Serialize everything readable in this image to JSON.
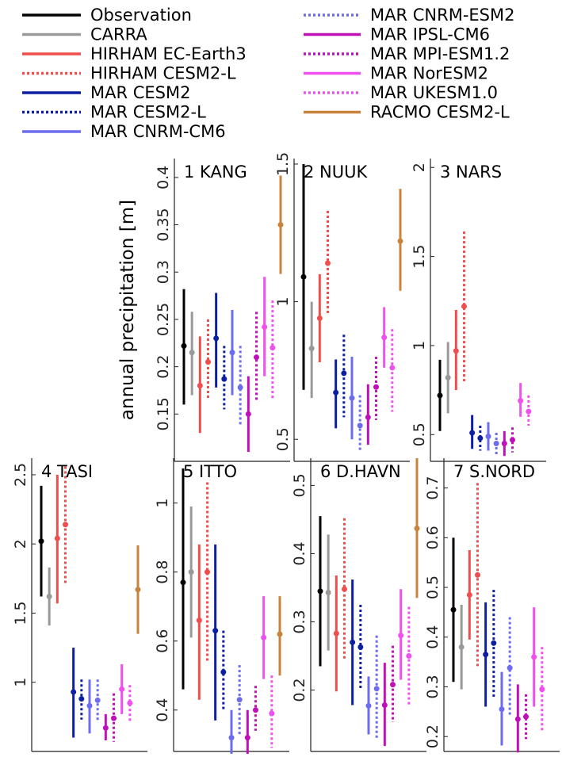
{
  "colors": {
    "Observation": "#000000",
    "CARRA": "#999999",
    "HIRHAM EC-Earth3": "#f04e4e",
    "HIRHAM CESM2-L": "#f04e4e",
    "MAR CESM2": "#0b1fa0",
    "MAR CESM2-L": "#0b1fa0",
    "MAR CNRM-CM6": "#6c6cee",
    "MAR CNRM-ESM2": "#6c6cee",
    "MAR IPSL-CM6": "#c010b8",
    "MAR MPI-ESM1.2": "#c010b8",
    "MAR NorESM2": "#f050ee",
    "MAR UKESM1.0": "#f050ee",
    "RACMO CESM2-L": "#c8843c"
  },
  "legend": [
    {
      "name": "Observation",
      "dashed": false
    },
    {
      "name": "CARRA",
      "dashed": false
    },
    {
      "name": "HIRHAM EC-Earth3",
      "dashed": false
    },
    {
      "name": "HIRHAM CESM2-L",
      "dashed": true
    },
    {
      "name": "MAR CESM2",
      "dashed": false
    },
    {
      "name": "MAR CESM2-L",
      "dashed": true
    },
    {
      "name": "MAR CNRM-CM6",
      "dashed": false
    },
    {
      "name": "MAR CNRM-ESM2",
      "dashed": true
    },
    {
      "name": "MAR IPSL-CM6",
      "dashed": false
    },
    {
      "name": "MAR MPI-ESM1.2",
      "dashed": true
    },
    {
      "name": "MAR NorESM2",
      "dashed": false
    },
    {
      "name": "MAR UKESM1.0",
      "dashed": true
    },
    {
      "name": "RACMO CESM2-L",
      "dashed": false
    }
  ],
  "chart_data": [
    {
      "type": "errorbar",
      "title": "1 KANG",
      "ylabel": "annual precipitation [m]",
      "ylim": [
        0.1,
        0.42
      ],
      "yticks": [
        "0.15",
        "0.2",
        "0.25",
        "0.3",
        "0.35",
        "0.4"
      ],
      "series": [
        {
          "name": "Observation",
          "mean": 0.222,
          "low": 0.16,
          "high": 0.282
        },
        {
          "name": "CARRA",
          "mean": 0.215,
          "low": 0.17,
          "high": 0.258
        },
        {
          "name": "HIRHAM EC-Earth3",
          "mean": 0.18,
          "low": 0.13,
          "high": 0.232
        },
        {
          "name": "HIRHAM CESM2-L",
          "mean": 0.205,
          "low": 0.165,
          "high": 0.25
        },
        {
          "name": "MAR CESM2",
          "mean": 0.23,
          "low": 0.178,
          "high": 0.278
        },
        {
          "name": "MAR CESM2-L",
          "mean": 0.187,
          "low": 0.155,
          "high": 0.222
        },
        {
          "name": "MAR CNRM-CM6",
          "mean": 0.215,
          "low": 0.17,
          "high": 0.26
        },
        {
          "name": "MAR CNRM-ESM2",
          "mean": 0.178,
          "low": 0.138,
          "high": 0.222
        },
        {
          "name": "MAR IPSL-CM6",
          "mean": 0.15,
          "low": 0.11,
          "high": 0.19
        },
        {
          "name": "MAR MPI-ESM1.2",
          "mean": 0.21,
          "low": 0.165,
          "high": 0.258
        },
        {
          "name": "MAR NorESM2",
          "mean": 0.242,
          "low": 0.19,
          "high": 0.295
        },
        {
          "name": "MAR UKESM1.0",
          "mean": 0.22,
          "low": 0.165,
          "high": 0.27
        },
        {
          "name": "RACMO CESM2-L",
          "mean": 0.35,
          "low": 0.298,
          "high": 0.402
        }
      ]
    },
    {
      "type": "errorbar",
      "title": "2 NUUK",
      "ylabel": "",
      "ylim": [
        0.42,
        1.52
      ],
      "yticks": [
        "0.5",
        "1",
        "1.5"
      ],
      "series": [
        {
          "name": "Observation",
          "mean": 1.09,
          "low": 0.68,
          "high": 1.5
        },
        {
          "name": "CARRA",
          "mean": 0.83,
          "low": 0.65,
          "high": 1.0
        },
        {
          "name": "HIRHAM EC-Earth3",
          "mean": 0.94,
          "low": 0.78,
          "high": 1.1
        },
        {
          "name": "HIRHAM CESM2-L",
          "mean": 1.14,
          "low": 0.95,
          "high": 1.33
        },
        {
          "name": "MAR CESM2",
          "mean": 0.67,
          "low": 0.54,
          "high": 0.79
        },
        {
          "name": "MAR CESM2-L",
          "mean": 0.74,
          "low": 0.58,
          "high": 0.88
        },
        {
          "name": "MAR CNRM-CM6",
          "mean": 0.65,
          "low": 0.5,
          "high": 0.8
        },
        {
          "name": "MAR CNRM-ESM2",
          "mean": 0.55,
          "low": 0.46,
          "high": 0.66
        },
        {
          "name": "MAR IPSL-CM6",
          "mean": 0.58,
          "low": 0.48,
          "high": 0.7
        },
        {
          "name": "MAR MPI-ESM1.2",
          "mean": 0.69,
          "low": 0.57,
          "high": 0.8
        },
        {
          "name": "MAR NorESM2",
          "mean": 0.87,
          "low": 0.76,
          "high": 0.98
        },
        {
          "name": "MAR UKESM1.0",
          "mean": 0.76,
          "low": 0.6,
          "high": 0.9
        },
        {
          "name": "RACMO CESM2-L",
          "mean": 1.22,
          "low": 1.04,
          "high": 1.41
        }
      ]
    },
    {
      "type": "errorbar",
      "title": "3 NARS",
      "ylabel": "",
      "ylim": [
        0.35,
        2.05
      ],
      "yticks": [
        "0.5",
        "1",
        "1.5",
        "2"
      ],
      "series": [
        {
          "name": "Observation",
          "mean": 0.72,
          "low": 0.52,
          "high": 0.92
        },
        {
          "name": "CARRA",
          "mean": 0.82,
          "low": 0.62,
          "high": 1.02
        },
        {
          "name": "HIRHAM EC-Earth3",
          "mean": 0.97,
          "low": 0.75,
          "high": 1.2
        },
        {
          "name": "HIRHAM CESM2-L",
          "mean": 1.22,
          "low": 0.8,
          "high": 1.64
        },
        {
          "name": "MAR CESM2",
          "mean": 0.51,
          "low": 0.42,
          "high": 0.61
        },
        {
          "name": "MAR CESM2-L",
          "mean": 0.48,
          "low": 0.41,
          "high": 0.55
        },
        {
          "name": "MAR CNRM-CM6",
          "mean": 0.49,
          "low": 0.41,
          "high": 0.57
        },
        {
          "name": "MAR CNRM-ESM2",
          "mean": 0.45,
          "low": 0.39,
          "high": 0.51
        },
        {
          "name": "MAR IPSL-CM6",
          "mean": 0.45,
          "low": 0.38,
          "high": 0.52
        },
        {
          "name": "MAR MPI-ESM1.2",
          "mean": 0.47,
          "low": 0.4,
          "high": 0.54
        },
        {
          "name": "MAR NorESM2",
          "mean": 0.69,
          "low": 0.6,
          "high": 0.79
        },
        {
          "name": "MAR UKESM1.0",
          "mean": 0.63,
          "low": 0.55,
          "high": 0.72
        },
        {
          "name": "RACMO CESM2-L",
          "mean": null,
          "low": null,
          "high": null
        }
      ]
    },
    {
      "type": "errorbar",
      "title": "4 TASI",
      "ylabel": "",
      "ylim": [
        0.5,
        2.62
      ],
      "yticks": [
        "1",
        "1.5",
        "2",
        "2.5"
      ],
      "series": [
        {
          "name": "Observation",
          "mean": 2.02,
          "low": 1.62,
          "high": 2.42
        },
        {
          "name": "CARRA",
          "mean": 1.62,
          "low": 1.41,
          "high": 1.83
        },
        {
          "name": "HIRHAM EC-Earth3",
          "mean": 2.04,
          "low": 1.57,
          "high": 2.5
        },
        {
          "name": "HIRHAM CESM2-L",
          "mean": 2.14,
          "low": 1.7,
          "high": 2.56
        },
        {
          "name": "MAR CESM2",
          "mean": 0.93,
          "low": 0.6,
          "high": 1.25
        },
        {
          "name": "MAR CESM2-L",
          "mean": 0.88,
          "low": 0.73,
          "high": 1.02
        },
        {
          "name": "MAR CNRM-CM6",
          "mean": 0.83,
          "low": 0.63,
          "high": 1.02
        },
        {
          "name": "MAR CNRM-ESM2",
          "mean": 0.87,
          "low": 0.72,
          "high": 1.02
        },
        {
          "name": "MAR IPSL-CM6",
          "mean": 0.67,
          "low": 0.58,
          "high": 0.77
        },
        {
          "name": "MAR MPI-ESM1.2",
          "mean": 0.74,
          "low": 0.57,
          "high": 0.92
        },
        {
          "name": "MAR NorESM2",
          "mean": 0.95,
          "low": 0.77,
          "high": 1.13
        },
        {
          "name": "MAR UKESM1.0",
          "mean": 0.85,
          "low": 0.72,
          "high": 0.98
        },
        {
          "name": "RACMO CESM2-L",
          "mean": 1.67,
          "low": 1.35,
          "high": 1.99
        }
      ]
    },
    {
      "type": "errorbar",
      "title": "5 ITTO",
      "ylabel": "",
      "ylim": [
        0.28,
        1.13
      ],
      "yticks": [
        "0.4",
        "0.6",
        "0.8",
        "1"
      ],
      "series": [
        {
          "name": "Observation",
          "mean": 0.77,
          "low": 0.46,
          "high": 1.1
        },
        {
          "name": "CARRA",
          "mean": 0.8,
          "low": 0.61,
          "high": 0.99
        },
        {
          "name": "HIRHAM EC-Earth3",
          "mean": 0.66,
          "low": 0.43,
          "high": 0.88
        },
        {
          "name": "HIRHAM CESM2-L",
          "mean": 0.8,
          "low": 0.54,
          "high": 1.06
        },
        {
          "name": "MAR CESM2",
          "mean": 0.63,
          "low": 0.37,
          "high": 0.88
        },
        {
          "name": "MAR CESM2-L",
          "mean": 0.51,
          "low": 0.4,
          "high": 0.63
        },
        {
          "name": "MAR CNRM-CM6",
          "mean": 0.32,
          "low": 0.24,
          "high": 0.4
        },
        {
          "name": "MAR CNRM-ESM2",
          "mean": 0.43,
          "low": 0.33,
          "high": 0.53
        },
        {
          "name": "MAR IPSL-CM6",
          "mean": 0.32,
          "low": 0.24,
          "high": 0.4
        },
        {
          "name": "MAR MPI-ESM1.2",
          "mean": 0.4,
          "low": 0.34,
          "high": 0.47
        },
        {
          "name": "MAR NorESM2",
          "mean": 0.61,
          "low": 0.49,
          "high": 0.73
        },
        {
          "name": "MAR UKESM1.0",
          "mean": 0.39,
          "low": 0.29,
          "high": 0.5
        },
        {
          "name": "RACMO CESM2-L",
          "mean": 0.62,
          "low": 0.5,
          "high": 0.73
        }
      ]
    },
    {
      "type": "errorbar",
      "title": "6 D.HAVN",
      "ylabel": "",
      "ylim": [
        0.11,
        0.54
      ],
      "yticks": [
        "0.2",
        "0.3",
        "0.4",
        "0.5"
      ],
      "series": [
        {
          "name": "Observation",
          "mean": 0.345,
          "low": 0.235,
          "high": 0.455
        },
        {
          "name": "CARRA",
          "mean": 0.343,
          "low": 0.258,
          "high": 0.428
        },
        {
          "name": "HIRHAM EC-Earth3",
          "mean": 0.283,
          "low": 0.198,
          "high": 0.368
        },
        {
          "name": "HIRHAM CESM2-L",
          "mean": 0.348,
          "low": 0.245,
          "high": 0.452
        },
        {
          "name": "MAR CESM2",
          "mean": 0.27,
          "low": 0.178,
          "high": 0.362
        },
        {
          "name": "MAR CESM2-L",
          "mean": 0.263,
          "low": 0.203,
          "high": 0.325
        },
        {
          "name": "MAR CNRM-CM6",
          "mean": 0.177,
          "low": 0.135,
          "high": 0.22
        },
        {
          "name": "MAR CNRM-ESM2",
          "mean": 0.202,
          "low": 0.128,
          "high": 0.28
        },
        {
          "name": "MAR IPSL-CM6",
          "mean": 0.178,
          "low": 0.118,
          "high": 0.24
        },
        {
          "name": "MAR MPI-ESM1.2",
          "mean": 0.208,
          "low": 0.153,
          "high": 0.265
        },
        {
          "name": "MAR NorESM2",
          "mean": 0.28,
          "low": 0.215,
          "high": 0.348
        },
        {
          "name": "MAR UKESM1.0",
          "mean": 0.25,
          "low": 0.178,
          "high": 0.322
        },
        {
          "name": "RACMO CESM2-L",
          "mean": 0.437,
          "low": 0.335,
          "high": 0.54
        }
      ]
    },
    {
      "type": "errorbar",
      "title": "7 S.NORD",
      "ylabel": "",
      "ylim": [
        0.17,
        0.76
      ],
      "yticks": [
        "0.2",
        "0.3",
        "0.4",
        "0.5",
        "0.6",
        "0.7"
      ],
      "series": [
        {
          "name": "Observation",
          "mean": 0.455,
          "low": 0.31,
          "high": 0.6
        },
        {
          "name": "CARRA",
          "mean": 0.38,
          "low": 0.295,
          "high": 0.465
        },
        {
          "name": "HIRHAM EC-Earth3",
          "mean": 0.485,
          "low": 0.395,
          "high": 0.575
        },
        {
          "name": "HIRHAM CESM2-L",
          "mean": 0.525,
          "low": 0.34,
          "high": 0.71
        },
        {
          "name": "MAR CESM2",
          "mean": 0.365,
          "low": 0.26,
          "high": 0.47
        },
        {
          "name": "MAR CESM2-L",
          "mean": 0.388,
          "low": 0.28,
          "high": 0.495
        },
        {
          "name": "MAR CNRM-CM6",
          "mean": 0.255,
          "low": 0.182,
          "high": 0.33
        },
        {
          "name": "MAR CNRM-ESM2",
          "mean": 0.338,
          "low": 0.24,
          "high": 0.44
        },
        {
          "name": "MAR IPSL-CM6",
          "mean": 0.235,
          "low": 0.168,
          "high": 0.305
        },
        {
          "name": "MAR MPI-ESM1.2",
          "mean": 0.24,
          "low": 0.195,
          "high": 0.285
        },
        {
          "name": "MAR NorESM2",
          "mean": 0.36,
          "low": 0.26,
          "high": 0.46
        },
        {
          "name": "MAR UKESM1.0",
          "mean": 0.295,
          "low": 0.208,
          "high": 0.38
        },
        {
          "name": "RACMO CESM2-L",
          "mean": null,
          "low": null,
          "high": null
        }
      ]
    }
  ]
}
